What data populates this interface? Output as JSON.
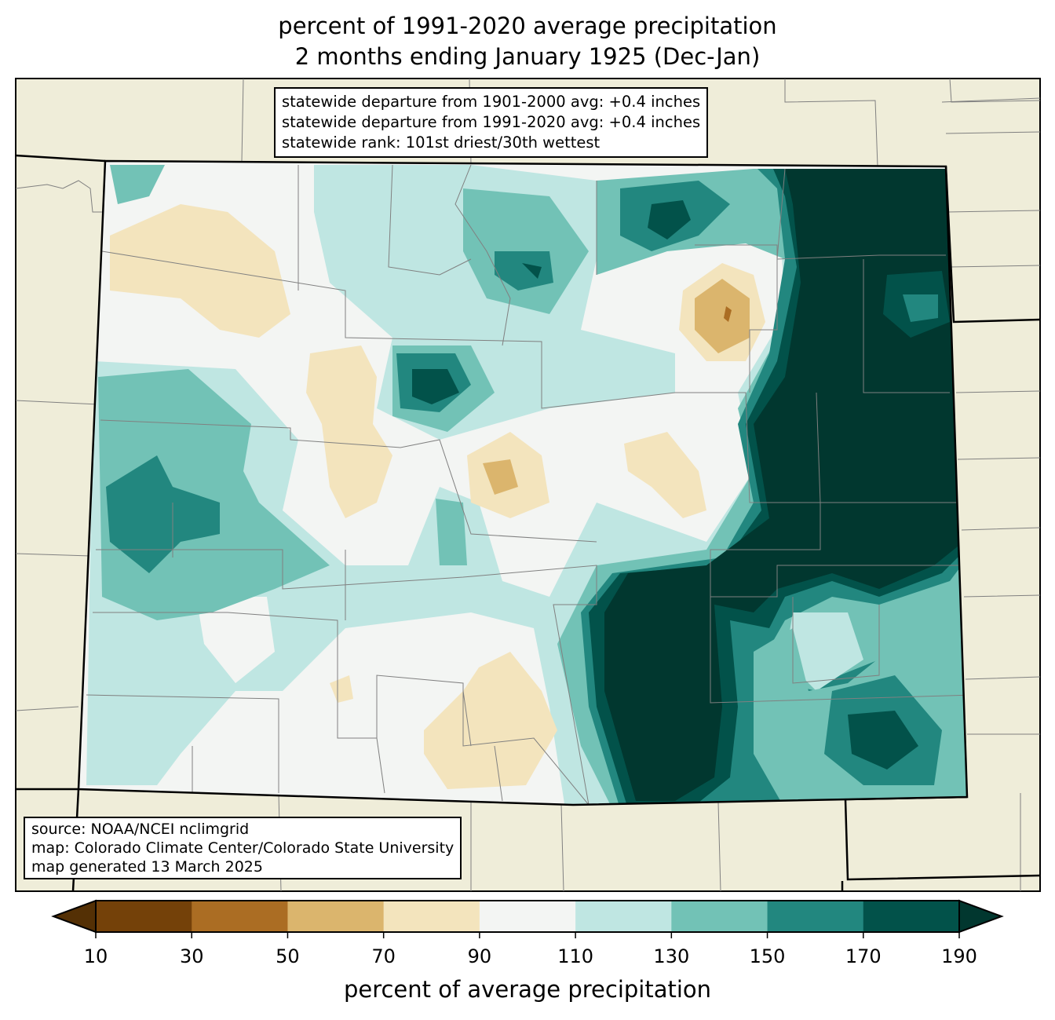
{
  "title_line1": "percent of 1991-2020 average precipitation",
  "title_line2": "2 months ending January 1925 (Dec-Jan)",
  "stats": {
    "line1": "statewide departure from 1901-2000 avg: +0.4 inches",
    "line2": "statewide departure from 1991-2020 avg: +0.4 inches",
    "line3": "statewide rank: 101st driest/30th wettest"
  },
  "credits": {
    "line1": "source: NOAA/NCEI nclimgrid",
    "line2": "map: Colorado Climate Center/Colorado State University",
    "line3": "map generated 13 March 2025"
  },
  "colorbar": {
    "label": "percent of average precipitation",
    "ticks": [
      "10",
      "30",
      "50",
      "70",
      "90",
      "110",
      "130",
      "150",
      "170",
      "190"
    ],
    "colors": [
      "#744109",
      "#ab6d23",
      "#dbb56d",
      "#f3e4bd",
      "#f3f5f3",
      "#bfe6e2",
      "#72c2b6",
      "#22877f",
      "#02524a"
    ],
    "under_color": "#543005",
    "over_color": "#01372f"
  },
  "colors": {
    "land": "#efedd9",
    "county": "#808080"
  }
}
